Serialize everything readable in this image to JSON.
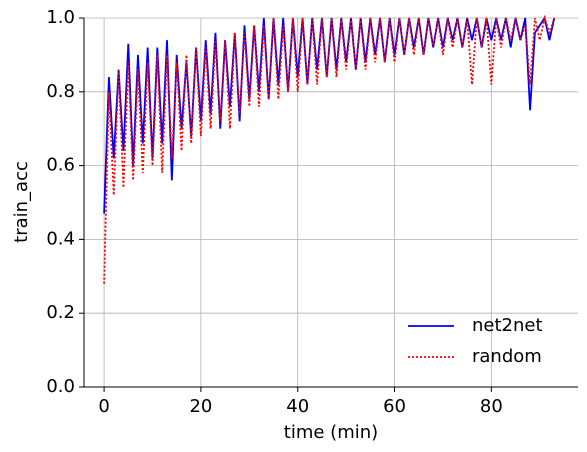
{
  "chart_data": {
    "type": "line",
    "xlabel": "time (min)",
    "ylabel": "train_acc",
    "x": [
      0,
      1,
      2,
      3,
      4,
      5,
      6,
      7,
      8,
      9,
      10,
      11,
      12,
      13,
      14,
      15,
      16,
      17,
      18,
      19,
      20,
      21,
      22,
      23,
      24,
      25,
      26,
      27,
      28,
      29,
      30,
      31,
      32,
      33,
      34,
      35,
      36,
      37,
      38,
      39,
      40,
      41,
      42,
      43,
      44,
      45,
      46,
      47,
      48,
      49,
      50,
      51,
      52,
      53,
      54,
      55,
      56,
      57,
      58,
      59,
      60,
      61,
      62,
      63,
      64,
      65,
      66,
      67,
      68,
      69,
      70,
      71,
      72,
      73,
      74,
      75,
      76,
      77,
      78,
      79,
      80,
      81,
      82,
      83,
      84,
      85,
      86,
      87,
      88,
      89,
      90,
      91,
      92,
      93
    ],
    "series": [
      {
        "name": "net2net",
        "color": "#0000ff",
        "dash": "solid",
        "values": [
          0.47,
          0.84,
          0.62,
          0.86,
          0.64,
          0.93,
          0.6,
          0.9,
          0.66,
          0.92,
          0.62,
          0.92,
          0.66,
          0.94,
          0.56,
          0.9,
          0.7,
          0.88,
          0.68,
          0.92,
          0.72,
          0.94,
          0.74,
          0.96,
          0.7,
          0.94,
          0.76,
          0.96,
          0.72,
          0.98,
          0.78,
          0.98,
          0.8,
          1.0,
          0.78,
          1.0,
          0.82,
          1.0,
          0.8,
          1.0,
          0.84,
          1.0,
          0.82,
          1.0,
          0.86,
          1.0,
          0.84,
          1.0,
          0.86,
          1.0,
          0.88,
          1.0,
          0.86,
          1.0,
          0.88,
          1.0,
          0.9,
          1.0,
          0.88,
          1.0,
          0.9,
          1.0,
          0.9,
          1.0,
          0.92,
          1.0,
          0.9,
          1.0,
          0.92,
          1.0,
          0.92,
          1.0,
          0.94,
          1.0,
          0.92,
          1.0,
          0.94,
          1.0,
          0.92,
          1.0,
          0.94,
          1.0,
          0.94,
          1.0,
          0.92,
          1.0,
          0.94,
          1.0,
          0.75,
          0.96,
          0.98,
          1.0,
          0.94,
          1.0
        ]
      },
      {
        "name": "random",
        "color": "#ff0000",
        "dash": "dotted",
        "values": [
          0.28,
          0.8,
          0.52,
          0.86,
          0.54,
          0.88,
          0.56,
          0.86,
          0.58,
          0.88,
          0.6,
          0.9,
          0.58,
          0.9,
          0.62,
          0.88,
          0.64,
          0.9,
          0.66,
          0.92,
          0.68,
          0.92,
          0.7,
          0.94,
          0.72,
          0.94,
          0.7,
          0.96,
          0.74,
          0.96,
          0.76,
          0.98,
          0.76,
          0.98,
          0.78,
          1.0,
          0.78,
          0.98,
          0.8,
          1.0,
          0.8,
          1.0,
          0.82,
          1.0,
          0.82,
          1.0,
          0.84,
          1.0,
          0.84,
          1.0,
          0.86,
          1.0,
          0.86,
          1.0,
          0.86,
          1.0,
          0.88,
          1.0,
          0.88,
          1.0,
          0.88,
          1.0,
          0.9,
          1.0,
          0.9,
          1.0,
          0.9,
          1.0,
          0.92,
          1.0,
          0.9,
          1.0,
          0.92,
          1.0,
          0.92,
          1.0,
          0.82,
          1.0,
          0.92,
          1.0,
          0.82,
          1.0,
          0.92,
          1.0,
          0.94,
          1.0,
          0.94,
          0.98,
          0.82,
          1.0,
          0.94,
          1.0,
          0.96,
          1.0
        ]
      }
    ],
    "xlim": [
      -4.15,
      97.9
    ],
    "ylim": [
      0,
      1
    ],
    "xticks": [
      0,
      20,
      40,
      60,
      80
    ],
    "yticks": [
      {
        "value": 0,
        "label": "0.0"
      },
      {
        "value": 0.2,
        "label": "0.2"
      },
      {
        "value": 0.4,
        "label": "0.4"
      },
      {
        "value": 0.6,
        "label": "0.6"
      },
      {
        "value": 0.8,
        "label": "0.8"
      },
      {
        "value": 1,
        "label": "1.0"
      }
    ],
    "grid": true,
    "legend": "lower right"
  }
}
